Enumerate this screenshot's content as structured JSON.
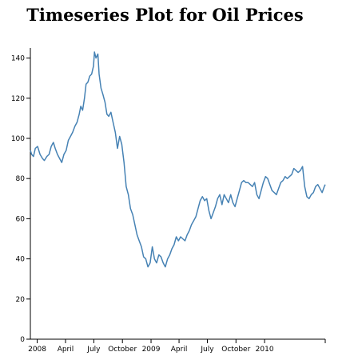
{
  "chart_data": {
    "type": "line",
    "title": "Timeseries Plot for Oil Prices",
    "xlabel": "",
    "ylabel": "",
    "ylim": [
      0,
      145
    ],
    "y_ticks": [
      0,
      20,
      40,
      60,
      80,
      100,
      120,
      140
    ],
    "x_range": [
      "2007-12-10",
      "2010-07-15"
    ],
    "x_ticks": [
      {
        "date": "2008-01-01",
        "label": "2008"
      },
      {
        "date": "2008-04-01",
        "label": "April"
      },
      {
        "date": "2008-07-01",
        "label": "July"
      },
      {
        "date": "2008-10-01",
        "label": "October"
      },
      {
        "date": "2009-01-01",
        "label": "2009"
      },
      {
        "date": "2009-04-01",
        "label": "April"
      },
      {
        "date": "2009-07-01",
        "label": "July"
      },
      {
        "date": "2009-10-01",
        "label": "October"
      },
      {
        "date": "2010-01-01",
        "label": "2010"
      }
    ],
    "series": [
      {
        "color": "#4682b4",
        "points": [
          [
            "2007-12-10",
            94
          ],
          [
            "2007-12-14",
            92
          ],
          [
            "2007-12-20",
            91
          ],
          [
            "2007-12-26",
            95
          ],
          [
            "2008-01-02",
            96
          ],
          [
            "2008-01-10",
            92
          ],
          [
            "2008-01-18",
            90
          ],
          [
            "2008-01-24",
            89
          ],
          [
            "2008-02-01",
            91
          ],
          [
            "2008-02-08",
            92
          ],
          [
            "2008-02-15",
            96
          ],
          [
            "2008-02-22",
            98
          ],
          [
            "2008-02-28",
            95
          ],
          [
            "2008-03-06",
            92
          ],
          [
            "2008-03-13",
            90
          ],
          [
            "2008-03-20",
            88
          ],
          [
            "2008-03-27",
            92
          ],
          [
            "2008-04-03",
            94
          ],
          [
            "2008-04-10",
            99
          ],
          [
            "2008-04-17",
            101
          ],
          [
            "2008-04-24",
            103
          ],
          [
            "2008-05-01",
            106
          ],
          [
            "2008-05-08",
            108
          ],
          [
            "2008-05-15",
            112
          ],
          [
            "2008-05-20",
            116
          ],
          [
            "2008-05-26",
            114
          ],
          [
            "2008-06-01",
            120
          ],
          [
            "2008-06-06",
            127
          ],
          [
            "2008-06-12",
            128
          ],
          [
            "2008-06-18",
            131
          ],
          [
            "2008-06-24",
            132
          ],
          [
            "2008-06-30",
            136
          ],
          [
            "2008-07-03",
            143
          ],
          [
            "2008-07-08",
            140
          ],
          [
            "2008-07-14",
            142
          ],
          [
            "2008-07-18",
            132
          ],
          [
            "2008-07-24",
            125
          ],
          [
            "2008-07-30",
            122
          ],
          [
            "2008-08-06",
            118
          ],
          [
            "2008-08-12",
            112
          ],
          [
            "2008-08-18",
            111
          ],
          [
            "2008-08-25",
            113
          ],
          [
            "2008-09-01",
            108
          ],
          [
            "2008-09-08",
            103
          ],
          [
            "2008-09-15",
            95
          ],
          [
            "2008-09-22",
            101
          ],
          [
            "2008-09-29",
            97
          ],
          [
            "2008-10-06",
            88
          ],
          [
            "2008-10-13",
            76
          ],
          [
            "2008-10-20",
            72
          ],
          [
            "2008-10-27",
            65
          ],
          [
            "2008-11-03",
            62
          ],
          [
            "2008-11-10",
            57
          ],
          [
            "2008-11-17",
            52
          ],
          [
            "2008-11-24",
            49
          ],
          [
            "2008-12-01",
            46
          ],
          [
            "2008-12-08",
            41
          ],
          [
            "2008-12-15",
            40
          ],
          [
            "2008-12-22",
            36
          ],
          [
            "2008-12-29",
            38
          ],
          [
            "2009-01-05",
            46
          ],
          [
            "2009-01-12",
            40
          ],
          [
            "2009-01-19",
            38
          ],
          [
            "2009-01-26",
            42
          ],
          [
            "2009-02-02",
            41
          ],
          [
            "2009-02-09",
            38
          ],
          [
            "2009-02-16",
            36
          ],
          [
            "2009-02-23",
            40
          ],
          [
            "2009-03-02",
            42
          ],
          [
            "2009-03-09",
            45
          ],
          [
            "2009-03-16",
            47
          ],
          [
            "2009-03-23",
            51
          ],
          [
            "2009-03-30",
            49
          ],
          [
            "2009-04-06",
            51
          ],
          [
            "2009-04-13",
            50
          ],
          [
            "2009-04-20",
            49
          ],
          [
            "2009-04-27",
            52
          ],
          [
            "2009-05-04",
            54
          ],
          [
            "2009-05-11",
            57
          ],
          [
            "2009-05-18",
            59
          ],
          [
            "2009-05-25",
            61
          ],
          [
            "2009-06-01",
            65
          ],
          [
            "2009-06-08",
            69
          ],
          [
            "2009-06-15",
            71
          ],
          [
            "2009-06-22",
            69
          ],
          [
            "2009-06-29",
            70
          ],
          [
            "2009-07-06",
            64
          ],
          [
            "2009-07-13",
            60
          ],
          [
            "2009-07-20",
            63
          ],
          [
            "2009-07-27",
            66
          ],
          [
            "2009-08-03",
            70
          ],
          [
            "2009-08-10",
            72
          ],
          [
            "2009-08-17",
            67
          ],
          [
            "2009-08-24",
            72
          ],
          [
            "2009-08-31",
            70
          ],
          [
            "2009-09-07",
            68
          ],
          [
            "2009-09-14",
            72
          ],
          [
            "2009-09-21",
            68
          ],
          [
            "2009-09-28",
            66
          ],
          [
            "2009-10-05",
            70
          ],
          [
            "2009-10-12",
            74
          ],
          [
            "2009-10-19",
            78
          ],
          [
            "2009-10-26",
            79
          ],
          [
            "2009-11-02",
            78
          ],
          [
            "2009-11-09",
            78
          ],
          [
            "2009-11-16",
            77
          ],
          [
            "2009-11-23",
            76
          ],
          [
            "2009-11-30",
            78
          ],
          [
            "2009-12-07",
            72
          ],
          [
            "2009-12-14",
            70
          ],
          [
            "2009-12-21",
            74
          ],
          [
            "2009-12-28",
            78
          ],
          [
            "2010-01-04",
            81
          ],
          [
            "2010-01-11",
            80
          ],
          [
            "2010-01-18",
            77
          ],
          [
            "2010-01-25",
            74
          ],
          [
            "2010-02-01",
            73
          ],
          [
            "2010-02-08",
            72
          ],
          [
            "2010-02-15",
            75
          ],
          [
            "2010-02-22",
            78
          ],
          [
            "2010-03-01",
            79
          ],
          [
            "2010-03-08",
            81
          ],
          [
            "2010-03-15",
            80
          ],
          [
            "2010-03-22",
            81
          ],
          [
            "2010-03-29",
            82
          ],
          [
            "2010-04-05",
            85
          ],
          [
            "2010-04-12",
            84
          ],
          [
            "2010-04-19",
            83
          ],
          [
            "2010-04-26",
            84
          ],
          [
            "2010-05-03",
            86
          ],
          [
            "2010-05-10",
            76
          ],
          [
            "2010-05-17",
            71
          ],
          [
            "2010-05-24",
            70
          ],
          [
            "2010-05-31",
            72
          ],
          [
            "2010-06-07",
            73
          ],
          [
            "2010-06-14",
            76
          ],
          [
            "2010-06-21",
            77
          ],
          [
            "2010-06-28",
            75
          ],
          [
            "2010-07-05",
            73
          ],
          [
            "2010-07-12",
            76
          ],
          [
            "2010-07-15",
            77
          ]
        ]
      }
    ]
  }
}
